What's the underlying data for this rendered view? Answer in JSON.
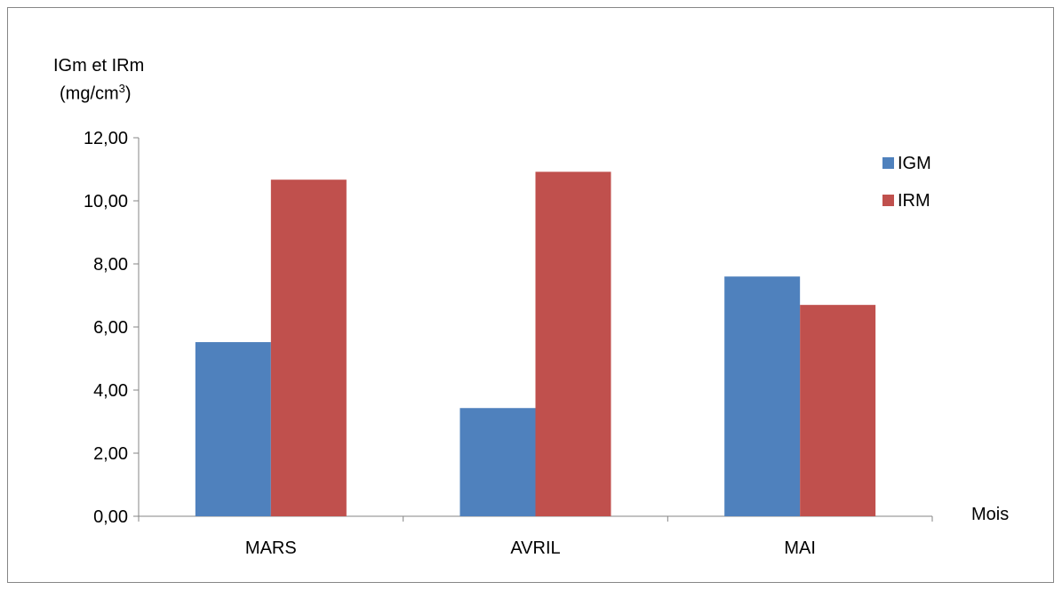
{
  "chart_data": {
    "type": "bar",
    "ylabel_line1": "IGm et IRm",
    "ylabel_unit_prefix": "(mg/cm",
    "ylabel_unit_exp": "3",
    "ylabel_unit_suffix": ")",
    "xlabel": "Mois",
    "categories": [
      "MARS",
      "AVRIL",
      "MAI"
    ],
    "series": [
      {
        "name": "IGM",
        "color": "#4f81bd",
        "values": [
          5.52,
          3.43,
          7.6
        ]
      },
      {
        "name": "IRM",
        "color": "#c0504d",
        "values": [
          10.67,
          10.92,
          6.7
        ]
      }
    ],
    "ylim": [
      0,
      12
    ],
    "yticks": [
      "0,00",
      "2,00",
      "4,00",
      "6,00",
      "8,00",
      "10,00",
      "12,00"
    ],
    "grid": false,
    "legend": "top-right"
  }
}
